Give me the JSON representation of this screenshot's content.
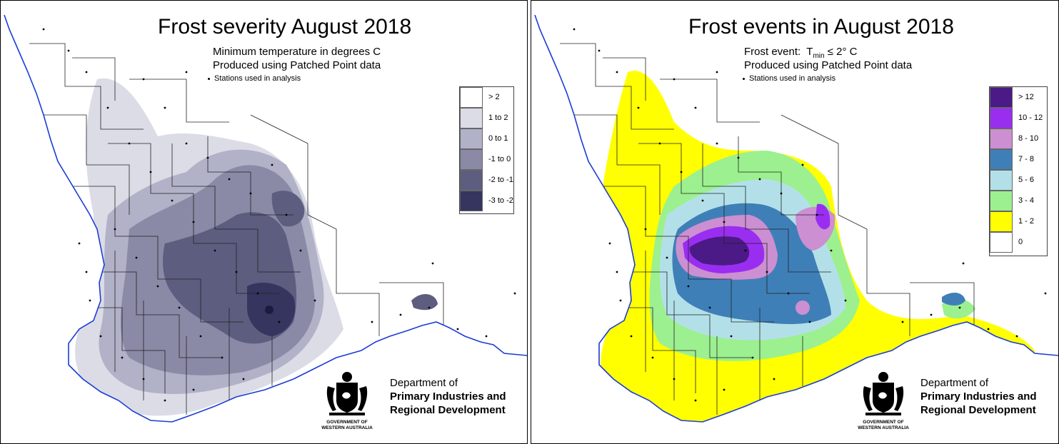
{
  "left": {
    "title": "Frost severity August 2018",
    "subtitle_1": "Minimum temperature in degrees C",
    "subtitle_2": "Produced using Patched Point data",
    "stations_label": "Stations used in analysis",
    "legend": [
      {
        "label": "> 2",
        "color": "#ffffff"
      },
      {
        "label": "1 to 2",
        "color": "#dcdce6"
      },
      {
        "label": "0 to 1",
        "color": "#b1b1c8"
      },
      {
        "label": "-1 to 0",
        "color": "#8a8aa6"
      },
      {
        "label": "-2 to -1",
        "color": "#5d5d80"
      },
      {
        "label": "-3 to -2",
        "color": "#35355f"
      }
    ]
  },
  "right": {
    "title": "Frost events in August 2018",
    "frost_event_prefix": "Frost event:",
    "frost_event_T": "T",
    "frost_event_sub": "min",
    "frost_event_suffix": "≤  2° C",
    "subtitle_2": "Produced using Patched Point data",
    "stations_label": "Stations used in analysis",
    "legend": [
      {
        "label": "> 12",
        "color": "#4b1a86"
      },
      {
        "label": "10 - 12",
        "color": "#9a2ef0"
      },
      {
        "label": "8 - 10",
        "color": "#cc8fd2"
      },
      {
        "label": "7 - 8",
        "color": "#3f7fb8"
      },
      {
        "label": "5 - 6",
        "color": "#b3e0e8"
      },
      {
        "label": "3 - 4",
        "color": "#9cf08f"
      },
      {
        "label": "1 - 2",
        "color": "#ffff00"
      },
      {
        "label": "0",
        "color": "#ffffff"
      }
    ]
  },
  "dept": {
    "line1": "Department of",
    "line2": "Primary Industries and",
    "line3": "Regional Development",
    "gov1": "GOVERNMENT OF",
    "gov2": "WESTERN AUSTRALIA"
  }
}
